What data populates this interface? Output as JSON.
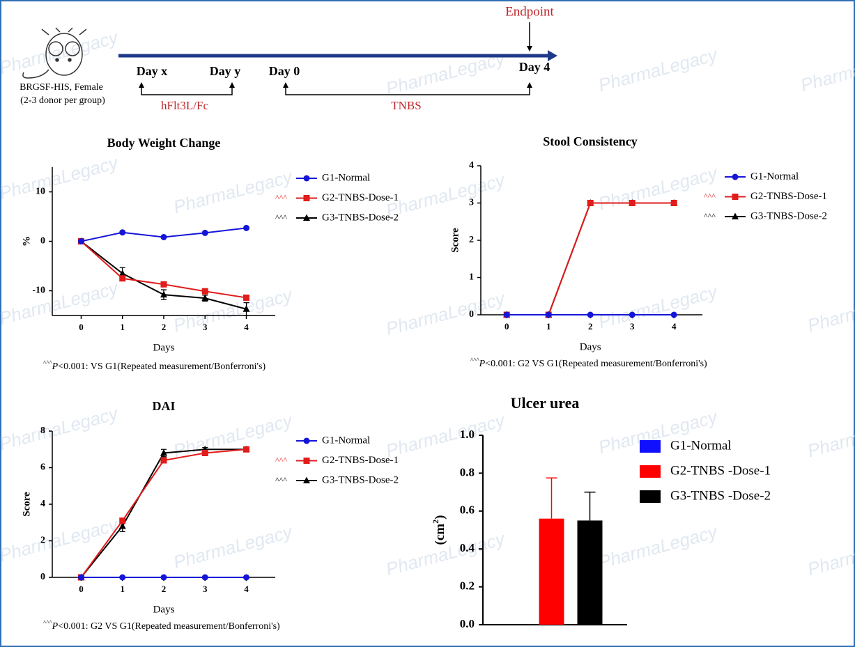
{
  "timeline": {
    "model": "BRGSF-HIS, Female",
    "donors": "(2-3 donor per group)",
    "endpoint": "Endpoint",
    "days": [
      "Day x",
      "Day y",
      "Day 0",
      "Day 4"
    ],
    "treatments": [
      "hFlt3L/Fc",
      "TNBS"
    ]
  },
  "watermark": "PharmaLegacy",
  "chart_data": [
    {
      "type": "line",
      "title": "Body Weight Change",
      "xlabel": "Days",
      "ylabel": "%",
      "x": [
        0,
        1,
        2,
        3,
        4
      ],
      "xlim": [
        -0.7,
        4.7
      ],
      "xticks": [
        0,
        1,
        2,
        3,
        4
      ],
      "ylim": [
        -15,
        15
      ],
      "yticks": [
        -10,
        0,
        10
      ],
      "series": [
        {
          "name": "G1-Normal",
          "color": "#1515d8",
          "marker": "circle",
          "values": [
            0,
            1.8,
            0.85,
            1.7,
            2.7
          ]
        },
        {
          "name": "G2-TNBS-Dose-1",
          "color": "#e21b1b",
          "marker": "square",
          "sig": "^^^",
          "values": [
            0,
            -7.5,
            -8.7,
            -10.1,
            -11.4
          ]
        },
        {
          "name": "G3-TNBS-Dose-2",
          "color": "#000000",
          "marker": "triangle",
          "sig": "^^^",
          "values": [
            0,
            -6.5,
            -10.8,
            -11.5,
            -13.7
          ],
          "errors": [
            0,
            1.2,
            1,
            0.6,
            1.3
          ]
        }
      ],
      "footnote": {
        "mark": "^^^",
        "p": "P",
        "text": "<0.001: VS G1(Repeated measurement/Bonferroni's)"
      }
    },
    {
      "type": "line",
      "title": "Stool Consistency",
      "xlabel": "Days",
      "ylabel": "Score",
      "x": [
        0,
        1,
        2,
        3,
        4
      ],
      "xlim": [
        -0.62,
        4.68
      ],
      "xticks": [
        0,
        1,
        2,
        3,
        4
      ],
      "ylim": [
        0,
        4
      ],
      "yticks": [
        0,
        1,
        2,
        3,
        4
      ],
      "series": [
        {
          "name": "G1-Normal",
          "color": "#1515d8",
          "marker": "circle",
          "values": [
            0,
            0,
            0,
            0,
            0
          ]
        },
        {
          "name": "G2-TNBS-Dose-1",
          "color": "#e21b1b",
          "marker": "square",
          "sig": "^^^",
          "values": [
            0,
            0,
            3,
            3,
            3
          ]
        },
        {
          "name": "G3-TNBS-Dose-2",
          "color": "#000000",
          "marker": "triangle",
          "sig": "^^^",
          "values": [
            0,
            0,
            3,
            3,
            3
          ]
        }
      ],
      "footnote": {
        "mark": "^^^",
        "p": "P",
        "text": "<0.001: G2 VS G1(Repeated measurement/Bonferroni's)"
      }
    },
    {
      "type": "line",
      "title": "DAI",
      "xlabel": "Days",
      "ylabel": "Score",
      "x": [
        0,
        1,
        2,
        3,
        4
      ],
      "xlim": [
        -0.7,
        4.7
      ],
      "xticks": [
        0,
        1,
        2,
        3,
        4
      ],
      "ylim": [
        0,
        8
      ],
      "yticks": [
        0,
        2,
        4,
        6,
        8
      ],
      "series": [
        {
          "name": "G1-Normal",
          "color": "#1515d8",
          "marker": "circle",
          "values": [
            0,
            0,
            0,
            0,
            0
          ]
        },
        {
          "name": "G2-TNBS-Dose-1",
          "color": "#e21b1b",
          "marker": "square",
          "sig": "^^^",
          "values": [
            0,
            3.1,
            6.4,
            6.8,
            7.0
          ]
        },
        {
          "name": "G3-TNBS-Dose-2",
          "color": "#000000",
          "marker": "triangle",
          "sig": "^^^",
          "values": [
            0,
            2.8,
            6.8,
            7.0,
            7.0
          ],
          "errors": [
            0,
            0.3,
            0.2,
            0.1,
            0.1
          ]
        }
      ],
      "footnote": {
        "mark": "^^^",
        "p": "P",
        "text": "<0.001: G2 VS G1(Repeated measurement/Bonferroni's)"
      }
    },
    {
      "type": "bar",
      "title": "Ulcer urea",
      "ylabel": [
        "(cm",
        "2",
        ")"
      ],
      "categories": [
        "G1-Normal",
        "G2-TNBS -Dose-1",
        "G3-TNBS -Dose-2"
      ],
      "values": [
        0,
        0.56,
        0.55
      ],
      "errors": [
        0,
        0.215,
        0.15
      ],
      "colors": [
        "#1010ff",
        "#ff0000",
        "#000000"
      ],
      "ylim": [
        0,
        1
      ],
      "yticks": [
        {
          "value": 0,
          "label": "0.0"
        },
        {
          "value": 0.2,
          "label": "0.2"
        },
        {
          "value": 0.4,
          "label": "0.4"
        },
        {
          "value": 0.6,
          "label": "0.6"
        },
        {
          "value": 0.8,
          "label": "0.8"
        },
        {
          "value": 1,
          "label": "1.0"
        }
      ]
    }
  ]
}
